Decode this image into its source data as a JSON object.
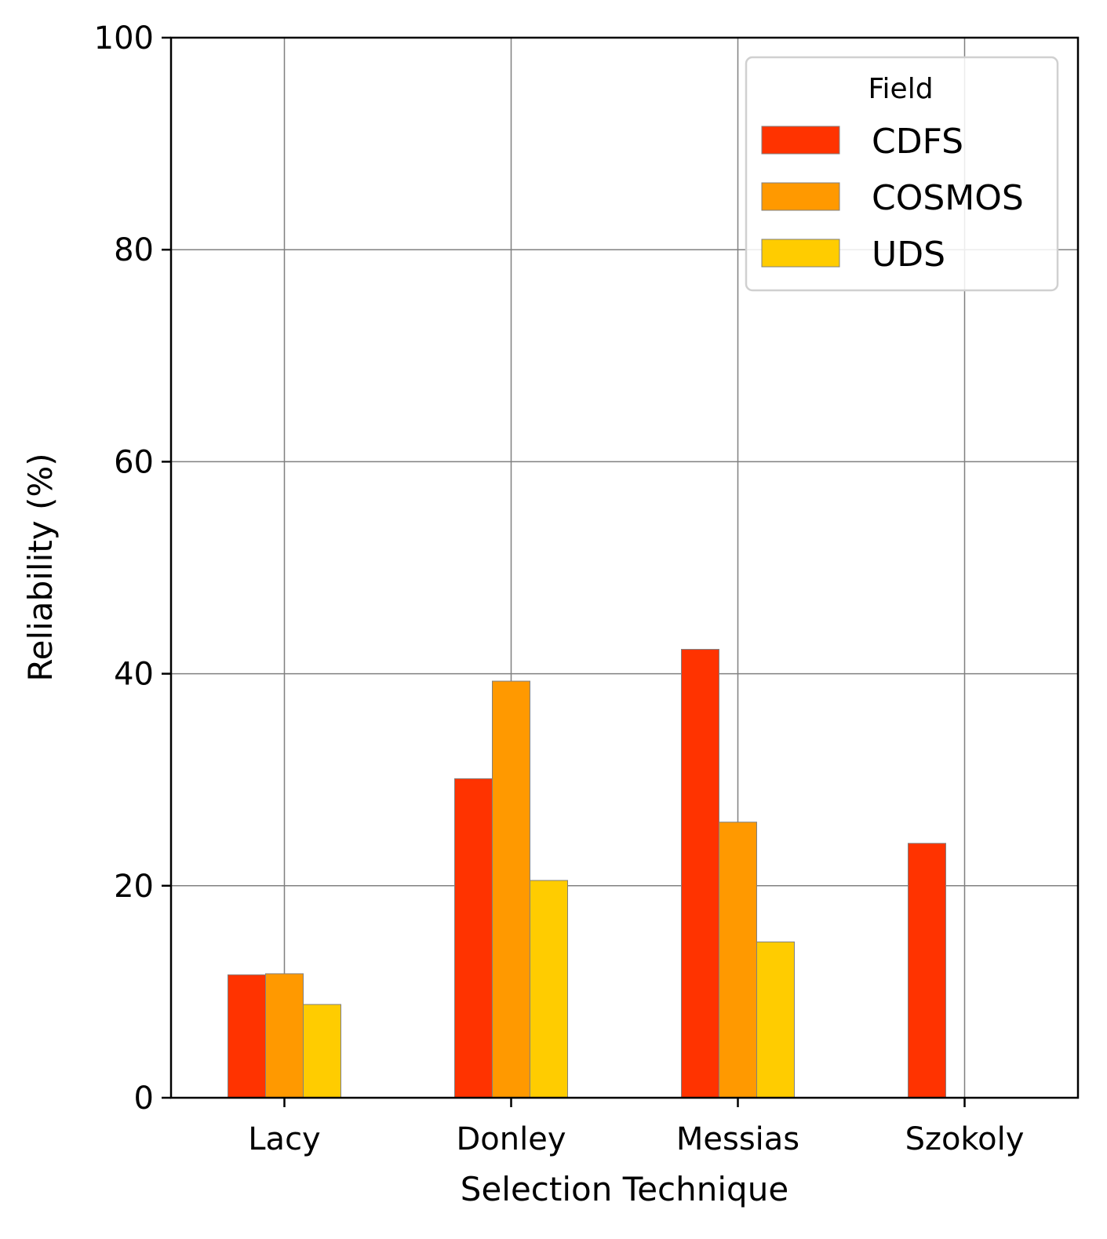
{
  "chart_data": {
    "type": "bar",
    "title": "",
    "xlabel": "Selection Technique",
    "ylabel": "Reliability (%)",
    "ylim": [
      0,
      100
    ],
    "yticks": [
      0,
      20,
      40,
      60,
      80,
      100
    ],
    "grid": true,
    "legend": {
      "title": "Field",
      "placement": "top-right"
    },
    "categories": [
      "Lacy",
      "Donley",
      "Messias",
      "Szokoly"
    ],
    "series": [
      {
        "name": "CDFS",
        "color": "#ff3300",
        "values": [
          11.6,
          30.1,
          42.3,
          24.0
        ]
      },
      {
        "name": "COSMOS",
        "color": "#ff9900",
        "values": [
          11.7,
          39.3,
          26.0,
          null
        ]
      },
      {
        "name": "UDS",
        "color": "#ffcc00",
        "values": [
          8.8,
          20.5,
          14.7,
          null
        ]
      }
    ]
  }
}
